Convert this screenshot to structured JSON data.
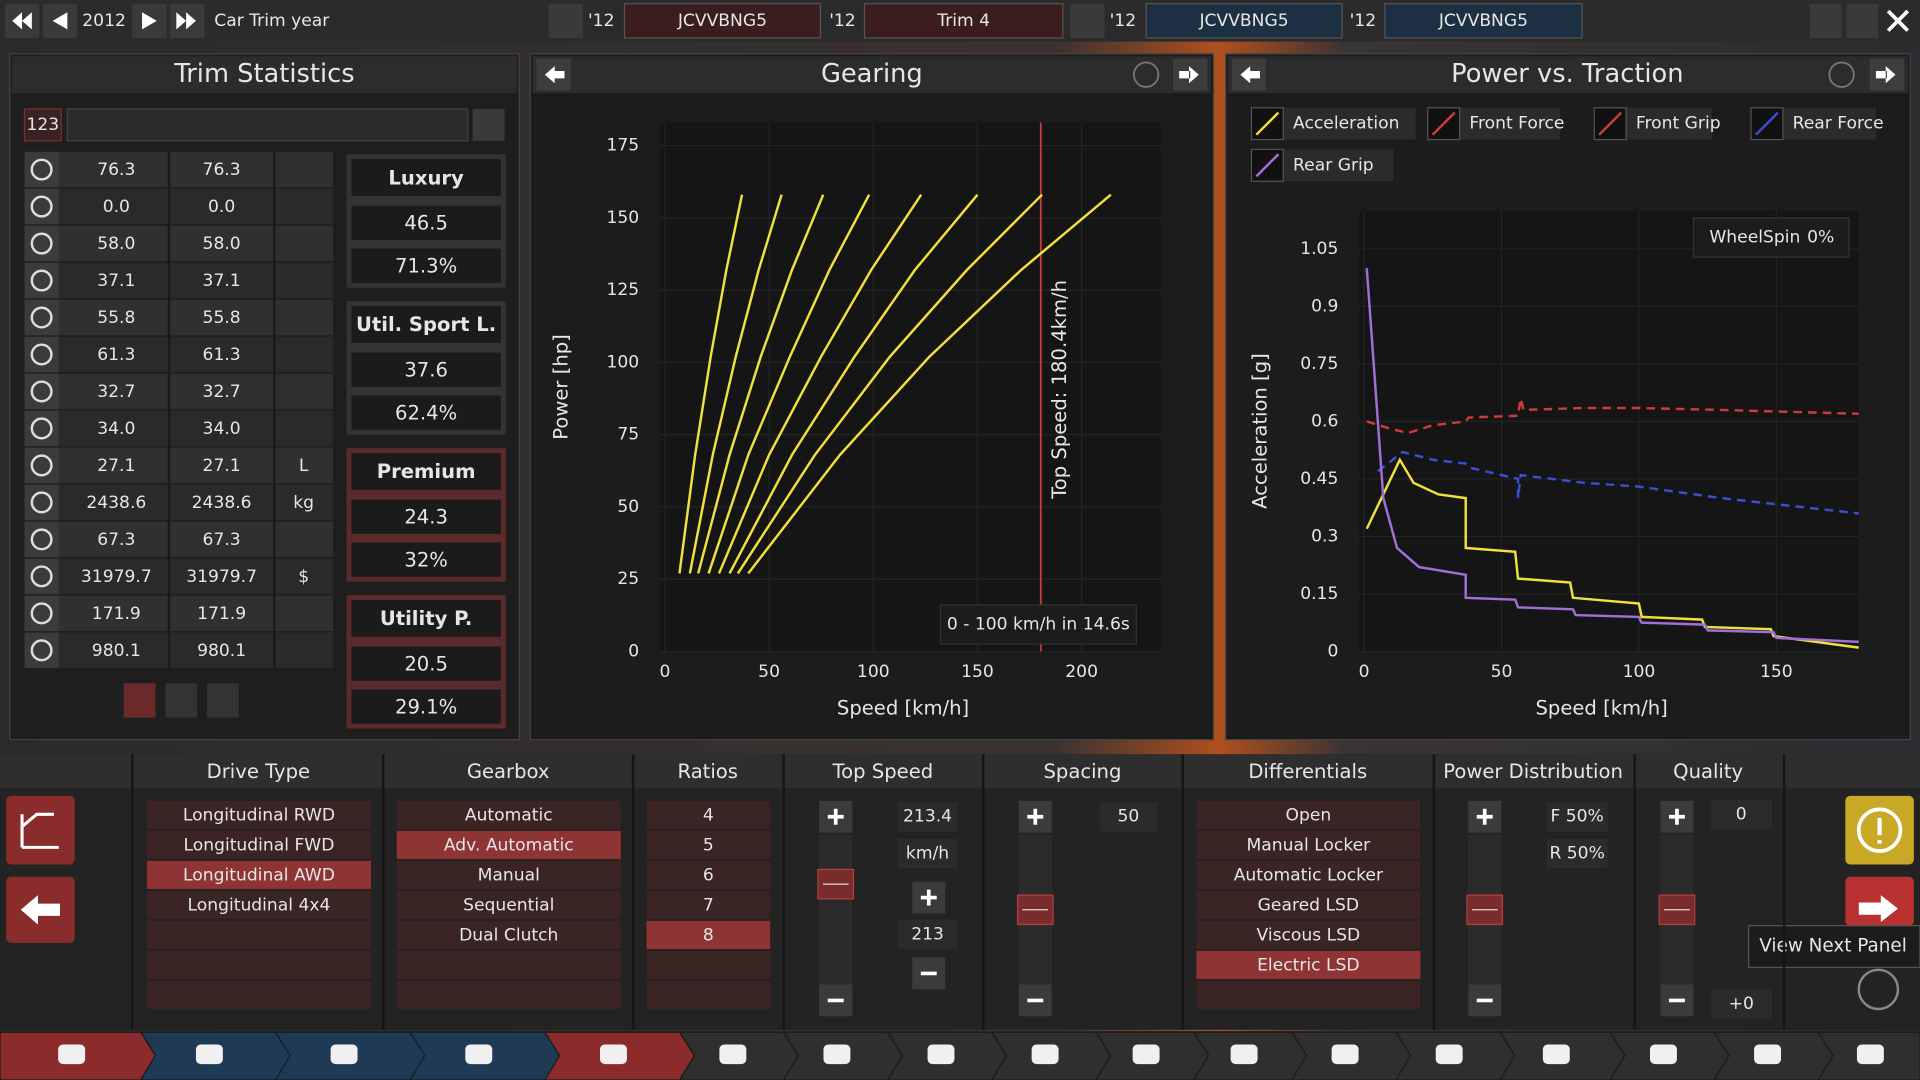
{
  "top_bar": {
    "year": "2012",
    "year_label": "Car Trim year",
    "tabs": [
      {
        "year": "'12",
        "name": "JCVVBNG5"
      },
      {
        "year": "'12",
        "name": "Trim 4"
      },
      {
        "year": "'12",
        "name": "JCVVBNG5"
      },
      {
        "year": "'12",
        "name": "JCVVBNG5"
      }
    ]
  },
  "trim_statistics": {
    "title": "Trim Statistics",
    "search_value": "123",
    "rows": [
      {
        "current": "76.3",
        "compare": "76.3"
      },
      {
        "current": "0.0",
        "compare": "0.0"
      },
      {
        "current": "58.0",
        "compare": "58.0"
      },
      {
        "current": "37.1",
        "compare": "37.1"
      },
      {
        "current": "55.8",
        "compare": "55.8"
      },
      {
        "current": "61.3",
        "compare": "61.3"
      },
      {
        "current": "32.7",
        "compare": "32.7"
      },
      {
        "current": "34.0",
        "compare": "34.0"
      },
      {
        "current": "27.1",
        "compare": "27.1",
        "unit": "L"
      },
      {
        "current": "2438.6",
        "compare": "2438.6",
        "unit": "kg"
      },
      {
        "current": "67.3",
        "compare": "67.3"
      },
      {
        "current": "31979.7",
        "compare": "31979.7",
        "unit": "$"
      },
      {
        "current": "171.9",
        "compare": "171.9"
      },
      {
        "current": "980.1",
        "compare": "980.1"
      }
    ],
    "markets": [
      {
        "name": "Luxury",
        "score": "46.5",
        "percent": "71.3%"
      },
      {
        "name": "Util. Sport L.",
        "score": "37.6",
        "percent": "62.4%"
      },
      {
        "name": "Premium",
        "score": "24.3",
        "percent": "32%"
      },
      {
        "name": "Utility P.",
        "score": "20.5",
        "percent": "29.1%"
      }
    ]
  },
  "chart_data": [
    {
      "type": "line",
      "title": "Gearing",
      "x_label": "Speed [km/h]",
      "y_label": "Power [hp]",
      "xlim": [
        0,
        238
      ],
      "ylim": [
        0,
        183
      ],
      "xticks": [
        0,
        50,
        100,
        150,
        200
      ],
      "yticks": [
        0,
        25,
        50,
        75,
        100,
        125,
        150,
        175
      ],
      "grid": true,
      "series": [
        {
          "color": "#f0e13c",
          "x": [
            7,
            14.5,
            22,
            29.5,
            37
          ],
          "values": [
            27,
            68,
            102,
            132,
            158
          ]
        },
        {
          "color": "#f0e13c",
          "x": [
            12,
            23,
            34,
            45,
            56
          ],
          "values": [
            27,
            68,
            102,
            132,
            158
          ]
        },
        {
          "color": "#f0e13c",
          "x": [
            16,
            31,
            46,
            61,
            76
          ],
          "values": [
            27,
            68,
            102,
            132,
            158
          ]
        },
        {
          "color": "#f0e13c",
          "x": [
            21,
            40,
            60,
            79,
            98
          ],
          "values": [
            27,
            68,
            102,
            132,
            158
          ]
        },
        {
          "color": "#f0e13c",
          "x": [
            26,
            50,
            75,
            99,
            123
          ],
          "values": [
            27,
            68,
            102,
            132,
            158
          ]
        },
        {
          "color": "#f0e13c",
          "x": [
            31,
            61,
            91,
            120,
            150
          ],
          "values": [
            27,
            68,
            102,
            132,
            158
          ]
        },
        {
          "color": "#f0e13c",
          "x": [
            35,
            72,
            108,
            145,
            181
          ],
          "values": [
            27,
            68,
            102,
            132,
            158
          ]
        },
        {
          "color": "#f0e13c",
          "x": [
            40,
            84,
            127,
            171,
            214
          ],
          "values": [
            27,
            68,
            102,
            132,
            158
          ]
        }
      ],
      "top_speed": 180.4,
      "top_speed_color": "#c83a3a",
      "top_speed_label": "Top Speed: 180.4km/h",
      "note": "0 - 100 km/h in 14.6s"
    },
    {
      "type": "line",
      "title": "Power vs. Traction",
      "x_label": "Speed [km/h]",
      "y_label": "Acceleration [g]",
      "xlim": [
        0,
        180
      ],
      "ylim": [
        0,
        1.15
      ],
      "xticks": [
        0,
        50,
        100,
        150
      ],
      "yticks": [
        0,
        0.15,
        0.3,
        0.45,
        0.6,
        0.75,
        0.9,
        1.05
      ],
      "grid": true,
      "legend": "top-left",
      "wheelspin_label": "WheelSpin",
      "wheelspin_value": "0%",
      "series": [
        {
          "name": "Acceleration",
          "color": "#f0e13c",
          "x": [
            1,
            13,
            18,
            27,
            37,
            37,
            55,
            56,
            75,
            76,
            100,
            101,
            123,
            124,
            148,
            149,
            180
          ],
          "values": [
            0.32,
            0.5,
            0.44,
            0.41,
            0.4,
            0.27,
            0.26,
            0.19,
            0.18,
            0.14,
            0.125,
            0.09,
            0.083,
            0.064,
            0.058,
            0.04,
            0.01
          ]
        },
        {
          "name": "Front Force",
          "color": "#d03a3a",
          "dashed": true,
          "x": [
            1,
            10,
            16,
            25,
            37,
            38,
            56,
            57,
            58,
            80,
            100,
            130,
            180
          ],
          "values": [
            0.6,
            0.58,
            0.57,
            0.59,
            0.6,
            0.61,
            0.615,
            0.66,
            0.63,
            0.635,
            0.635,
            0.63,
            0.62
          ]
        },
        {
          "name": "Front Grip",
          "color": "#d03a3a"
        },
        {
          "name": "Rear Force",
          "color": "#3b4fd4",
          "dashed": true,
          "x": [
            5,
            14,
            25,
            37,
            38,
            56,
            56,
            57,
            80,
            100,
            130,
            180
          ],
          "values": [
            0.47,
            0.52,
            0.5,
            0.49,
            0.48,
            0.45,
            0.4,
            0.46,
            0.44,
            0.43,
            0.4,
            0.36
          ]
        },
        {
          "name": "Rear Grip",
          "color": "#a070d8",
          "x": [
            1,
            4,
            7,
            12,
            20,
            37,
            37,
            55,
            56,
            76,
            77,
            100,
            101,
            124,
            125,
            149,
            150,
            180
          ],
          "values": [
            1.0,
            0.7,
            0.4,
            0.27,
            0.22,
            0.2,
            0.14,
            0.135,
            0.115,
            0.11,
            0.095,
            0.09,
            0.075,
            0.07,
            0.055,
            0.05,
            0.035,
            0.025
          ]
        }
      ]
    }
  ],
  "bottom_panel": {
    "drive_type": {
      "title": "Drive Type",
      "options": [
        "Longitudinal RWD",
        "Longitudinal FWD",
        "Longitudinal AWD",
        "Longitudinal 4x4"
      ],
      "selected": 2
    },
    "gearbox": {
      "title": "Gearbox",
      "options": [
        "Automatic",
        "Adv. Automatic",
        "Manual",
        "Sequential",
        "Dual Clutch"
      ],
      "selected": 1
    },
    "ratios": {
      "title": "Ratios",
      "options": [
        "4",
        "5",
        "6",
        "7",
        "8"
      ],
      "selected": 4
    },
    "top_speed": {
      "title": "Top Speed",
      "value": "213.4",
      "unit": "km/h",
      "setting": "213"
    },
    "spacing": {
      "title": "Spacing",
      "value": "50"
    },
    "differentials": {
      "title": "Differentials",
      "options": [
        "Open",
        "Manual Locker",
        "Automatic Locker",
        "Geared LSD",
        "Viscous LSD",
        "Electric LSD"
      ],
      "selected": 5
    },
    "power_distribution": {
      "title": "Power Distribution",
      "front": "F 50%",
      "rear": "R 50%"
    },
    "quality": {
      "title": "Quality",
      "value": "0",
      "delta": "+0"
    }
  },
  "tooltip": "View Next Panel"
}
